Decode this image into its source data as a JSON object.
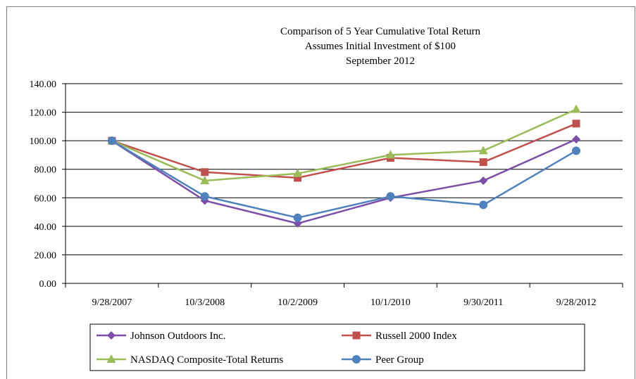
{
  "chart_data": {
    "type": "line",
    "title": [
      "Comparison of 5 Year Cumulative  Total Return",
      "Assumes Initial Investment of $100",
      "September 2012"
    ],
    "categories": [
      "9/28/2007",
      "10/3/2008",
      "10/2/2009",
      "10/1/2010",
      "9/30/2011",
      "9/28/2012"
    ],
    "ylim": [
      0,
      140
    ],
    "yticks": [
      "0.00",
      "20.00",
      "40.00",
      "60.00",
      "80.00",
      "100.00",
      "120.00",
      "140.00"
    ],
    "grid": true,
    "legend_position": "bottom",
    "series": [
      {
        "name": "Johnson Outdoors Inc.",
        "color": "#7b4fa8",
        "marker": "diamond",
        "values": [
          100,
          58,
          42,
          60,
          72,
          101
        ]
      },
      {
        "name": "Russell 2000 Index",
        "color": "#c0504d",
        "marker": "square",
        "values": [
          100,
          78,
          74,
          88,
          85,
          112
        ]
      },
      {
        "name": "NASDAQ Composite-Total Returns",
        "color": "#9bbb59",
        "marker": "triangle",
        "values": [
          100,
          72,
          77,
          90,
          93,
          122
        ]
      },
      {
        "name": "Peer Group",
        "color": "#4f81bd",
        "marker": "circle",
        "values": [
          100,
          61,
          46,
          61,
          55,
          93
        ]
      }
    ]
  }
}
